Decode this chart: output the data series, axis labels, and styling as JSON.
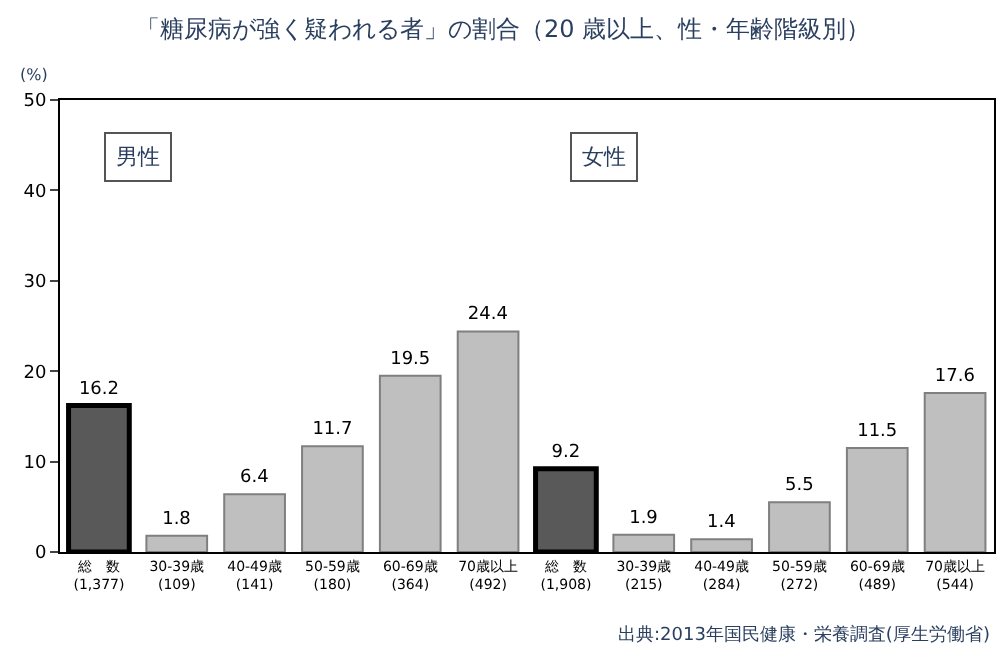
{
  "chart_data": {
    "type": "bar",
    "title": "「糖尿病が強く疑われる者」の割合（20 歳以上、性・年齢階級別）",
    "ylabel": "(%)",
    "categories": [
      "総　数\n(1,377)",
      "30-39歳\n(109)",
      "40-49歳\n(141)",
      "50-59歳\n(180)",
      "60-69歳\n(364)",
      "70歳以上\n(492)",
      "総　数\n(1,908)",
      "30-39歳\n(215)",
      "40-49歳\n(284)",
      "50-59歳\n(272)",
      "60-69歳\n(489)",
      "70歳以上\n(544)"
    ],
    "values": [
      16.2,
      1.8,
      6.4,
      11.7,
      19.5,
      24.4,
      9.2,
      1.9,
      1.4,
      5.5,
      11.5,
      17.6
    ],
    "colors": [
      "#595959",
      "#bfbfbf",
      "#bfbfbf",
      "#bfbfbf",
      "#bfbfbf",
      "#bfbfbf",
      "#595959",
      "#bfbfbf",
      "#bfbfbf",
      "#bfbfbf",
      "#bfbfbf",
      "#bfbfbf"
    ],
    "data_labels": true,
    "ylim": [
      0,
      50
    ],
    "yticks": [
      0,
      10,
      20,
      30,
      40,
      50
    ],
    "legend": false,
    "annotations": [
      "男性",
      "女性",
      "出典:2013年国民健康・栄養調査(厚生労働省)"
    ]
  }
}
